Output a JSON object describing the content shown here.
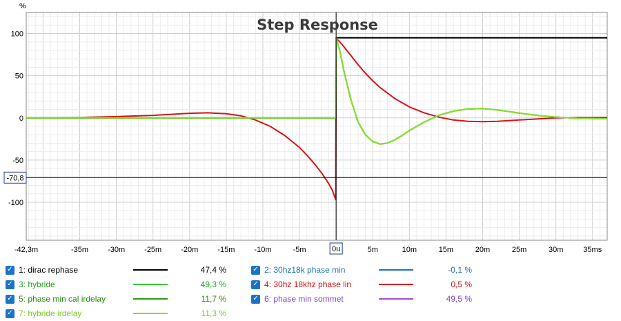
{
  "chart_data": {
    "type": "line",
    "title": "Step Response",
    "y_unit": "%",
    "x_unit": "ms",
    "xlim": [
      -42.3,
      37
    ],
    "ylim": [
      -145,
      125
    ],
    "x_ticks": [
      {
        "v": -42.3,
        "label": "-42,3m"
      },
      {
        "v": -35,
        "label": "-35m"
      },
      {
        "v": -30,
        "label": "-30m"
      },
      {
        "v": -25,
        "label": "-25m"
      },
      {
        "v": -20,
        "label": "-20m"
      },
      {
        "v": -15,
        "label": "-15m"
      },
      {
        "v": -10,
        "label": "-10m"
      },
      {
        "v": -5,
        "label": "-5m"
      },
      {
        "v": 0,
        "label": "0u"
      },
      {
        "v": 5,
        "label": "5m"
      },
      {
        "v": 10,
        "label": "10m"
      },
      {
        "v": 15,
        "label": "15m"
      },
      {
        "v": 20,
        "label": "20m"
      },
      {
        "v": 25,
        "label": "25m"
      },
      {
        "v": 30,
        "label": "30m"
      },
      {
        "v": 35,
        "label": "35ms"
      }
    ],
    "y_ticks": [
      {
        "v": 100,
        "label": "100"
      },
      {
        "v": 50,
        "label": "50"
      },
      {
        "v": 0,
        "label": "0"
      },
      {
        "v": -50,
        "label": "-50"
      },
      {
        "v": -100,
        "label": "-100"
      }
    ],
    "cursor": {
      "x": 0,
      "x_label": "0u",
      "y": -70.8,
      "y_label": "-70,8"
    },
    "grid": true,
    "series": [
      {
        "name": "1: dirac rephase",
        "color": "#000000",
        "x": [
          -42.3,
          -0.05,
          0,
          0.3,
          37
        ],
        "y": [
          0,
          0,
          95,
          95,
          95
        ]
      },
      {
        "name": "2: 30hz18k phase min",
        "color": "#1874cd",
        "x": [],
        "y": []
      },
      {
        "name": "3: hybride",
        "color": "#33cc33",
        "x": [
          -42.3,
          -5,
          -0.05,
          0,
          0.5,
          1,
          2,
          3,
          4,
          5,
          6,
          7,
          8,
          9,
          10,
          12,
          14,
          16,
          18,
          20,
          22,
          24,
          26,
          28,
          30,
          33,
          37
        ],
        "y": [
          0,
          0,
          0,
          95,
          80,
          58,
          22,
          -5,
          -20,
          -28,
          -31,
          -30,
          -26,
          -21,
          -15,
          -5,
          3,
          8,
          10.5,
          11,
          9.5,
          7,
          4.5,
          2.5,
          1,
          -0.5,
          -1
        ]
      },
      {
        "name": "4: 30hz 18khz phase lin",
        "color": "#dd1111",
        "x": [
          -42.3,
          -35,
          -30,
          -25,
          -20,
          -17.5,
          -15,
          -13,
          -11,
          -9,
          -7,
          -5,
          -4,
          -3,
          -2,
          -1,
          -0.5,
          -0.05,
          0,
          0.3,
          1,
          2,
          3,
          4,
          5,
          6,
          8,
          10,
          12,
          14,
          16,
          18,
          20,
          22,
          25,
          28,
          30,
          33,
          37
        ],
        "y": [
          0,
          0.5,
          1.5,
          3,
          5.5,
          6,
          5,
          2.5,
          -2.5,
          -10,
          -21,
          -35,
          -44,
          -54,
          -65,
          -78,
          -86,
          -97,
          93,
          92,
          85,
          74,
          63,
          53,
          44,
          36,
          23,
          13,
          6,
          1,
          -2.5,
          -4,
          -4.5,
          -4,
          -2.5,
          -1,
          0,
          0.5,
          0.5
        ]
      },
      {
        "name": "5: phase min cal irdelay",
        "color": "#2a9a10",
        "x": [
          -42.3,
          -5,
          -0.05,
          0,
          0.5,
          1,
          2,
          3,
          4,
          5,
          6,
          7,
          8,
          9,
          10,
          12,
          14,
          16,
          18,
          20,
          22,
          24,
          26,
          28,
          30,
          33,
          37
        ],
        "y": [
          0,
          0,
          0,
          95,
          80,
          58,
          22,
          -5,
          -20,
          -28,
          -31,
          -30,
          -26,
          -21,
          -15,
          -5,
          3,
          8,
          10.5,
          11,
          9.5,
          7,
          4.5,
          2.5,
          1,
          -0.5,
          -1
        ]
      },
      {
        "name": "6: phase min sommet",
        "color": "#9b4fd0",
        "x": [],
        "y": []
      },
      {
        "name": "7: hybride irdelay",
        "color": "#88e030",
        "x": [
          -42.3,
          -5,
          -0.05,
          0,
          0.5,
          1,
          2,
          3,
          4,
          5,
          6,
          7,
          8,
          9,
          10,
          12,
          14,
          16,
          18,
          20,
          22,
          24,
          26,
          28,
          30,
          33,
          37
        ],
        "y": [
          0,
          0,
          0,
          95,
          80,
          58,
          22,
          -5,
          -20,
          -28,
          -31,
          -30,
          -26,
          -21,
          -15,
          -5,
          3,
          8,
          10.5,
          11,
          9.5,
          7,
          4.5,
          2.5,
          1,
          -0.5,
          -1
        ]
      }
    ]
  },
  "legend": [
    {
      "label": "1: dirac rephase",
      "value": "47,4 %",
      "color": "#000000",
      "text_color": "#000000"
    },
    {
      "label": "2: 30hz18k phase min",
      "value": "-0,1 %",
      "color": "#1874cd",
      "text_color": "#1c6fb8"
    },
    {
      "label": "3: hybride",
      "value": "49,3 %",
      "color": "#33cc33",
      "text_color": "#22aa22"
    },
    {
      "label": "4: 30hz 18khz phase lin",
      "value": "0,5 %",
      "color": "#dd1111",
      "text_color": "#cc1111"
    },
    {
      "label": "5: phase min cal irdelay",
      "value": "11,7 %",
      "color": "#2a9a10",
      "text_color": "#2a8a10"
    },
    {
      "label": "6: phase min sommet",
      "value": "49,5 %",
      "color": "#9b4fd0",
      "text_color": "#8a44c0"
    },
    {
      "label": "7: hybride irdelay",
      "value": "11,3 %",
      "color": "#88e030",
      "text_color": "#77cc22"
    }
  ]
}
